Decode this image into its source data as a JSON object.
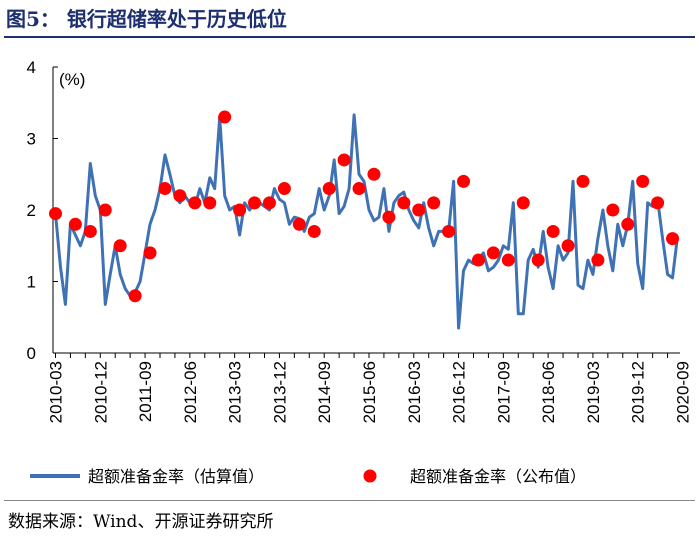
{
  "figure": {
    "title": "图5：  银行超储率处于历史低位",
    "source": "数据来源：Wind、开源证券研究所"
  },
  "chart_data": {
    "type": "line",
    "title": "银行超储率处于历史低位",
    "ylabel": "(%)",
    "xlabel": "",
    "ylim": [
      0,
      4
    ],
    "yticks": [
      0,
      1,
      2,
      3,
      4
    ],
    "x_start": "2010-03",
    "x_end": "2020-10",
    "xtick_labels": [
      "2010-03",
      "2010-12",
      "2011-09",
      "2012-06",
      "2013-03",
      "2013-12",
      "2014-09",
      "2015-06",
      "2016-03",
      "2016-12",
      "2017-09",
      "2018-06",
      "2019-03",
      "2019-12",
      "2020-09"
    ],
    "colors": {
      "estimated": "#3f72b5",
      "published": "#ff0000",
      "title": "#1d2f6f"
    },
    "series": [
      {
        "name": "超额准备金率（估算值）",
        "style": "line",
        "values": [
          1.95,
          1.2,
          0.68,
          1.8,
          1.65,
          1.5,
          1.7,
          2.65,
          2.2,
          2.0,
          0.68,
          1.1,
          1.5,
          1.1,
          0.9,
          0.8,
          0.85,
          1.0,
          1.4,
          1.8,
          2.0,
          2.3,
          2.77,
          2.5,
          2.2,
          2.1,
          2.2,
          2.1,
          2.05,
          2.3,
          2.1,
          2.45,
          2.3,
          3.3,
          2.2,
          2.0,
          2.05,
          1.65,
          2.1,
          2.0,
          2.1,
          2.1,
          2.05,
          2.0,
          2.3,
          2.15,
          2.1,
          1.8,
          1.9,
          1.88,
          1.7,
          1.9,
          1.95,
          2.3,
          2.0,
          2.2,
          2.7,
          1.95,
          2.05,
          2.3,
          3.33,
          2.5,
          2.4,
          2.0,
          1.85,
          1.9,
          2.3,
          1.7,
          2.1,
          2.2,
          2.25,
          2.0,
          1.85,
          1.75,
          2.1,
          1.75,
          1.5,
          1.7,
          1.7,
          1.7,
          2.4,
          0.35,
          1.15,
          1.3,
          1.25,
          1.3,
          1.4,
          1.15,
          1.2,
          1.3,
          1.5,
          1.45,
          2.1,
          0.55,
          0.55,
          1.3,
          1.45,
          1.2,
          1.7,
          1.2,
          0.9,
          1.5,
          1.3,
          1.4,
          2.4,
          0.95,
          0.9,
          1.3,
          1.1,
          1.6,
          2.0,
          1.5,
          1.15,
          1.8,
          1.5,
          1.8,
          2.4,
          1.25,
          0.9,
          2.1,
          2.05,
          2.15,
          1.6,
          1.1,
          1.05,
          1.63
        ]
      },
      {
        "name": "超额准备金率（公布值）",
        "style": "markers",
        "points": [
          [
            0,
            1.95
          ],
          [
            4,
            1.8
          ],
          [
            7,
            1.7
          ],
          [
            10,
            2.0
          ],
          [
            13,
            1.5
          ],
          [
            16,
            0.8
          ],
          [
            19,
            1.4
          ],
          [
            22,
            2.3
          ],
          [
            25,
            2.2
          ],
          [
            28,
            2.1
          ],
          [
            31,
            2.1
          ],
          [
            34,
            3.3
          ],
          [
            37,
            2.0
          ],
          [
            40,
            2.1
          ],
          [
            43,
            2.1
          ],
          [
            46,
            2.3
          ],
          [
            49,
            1.8
          ],
          [
            52,
            1.7
          ],
          [
            55,
            2.3
          ],
          [
            58,
            2.7
          ],
          [
            61,
            2.3
          ],
          [
            64,
            2.5
          ],
          [
            67,
            1.9
          ],
          [
            70,
            2.1
          ],
          [
            73,
            2.0
          ],
          [
            76,
            2.1
          ],
          [
            79,
            1.7
          ],
          [
            82,
            2.4
          ],
          [
            85,
            1.3
          ],
          [
            88,
            1.4
          ],
          [
            91,
            1.3
          ],
          [
            94,
            2.1
          ],
          [
            97,
            1.3
          ],
          [
            100,
            1.7
          ],
          [
            103,
            1.5
          ],
          [
            106,
            2.4
          ],
          [
            109,
            1.3
          ],
          [
            112,
            2.0
          ],
          [
            115,
            1.8
          ],
          [
            118,
            2.4
          ],
          [
            121,
            2.1
          ],
          [
            124,
            1.6
          ]
        ]
      }
    ],
    "legend": {
      "position": "bottom",
      "labels": [
        "超额准备金率（估算值）",
        "超额准备金率（公布值）"
      ]
    }
  }
}
